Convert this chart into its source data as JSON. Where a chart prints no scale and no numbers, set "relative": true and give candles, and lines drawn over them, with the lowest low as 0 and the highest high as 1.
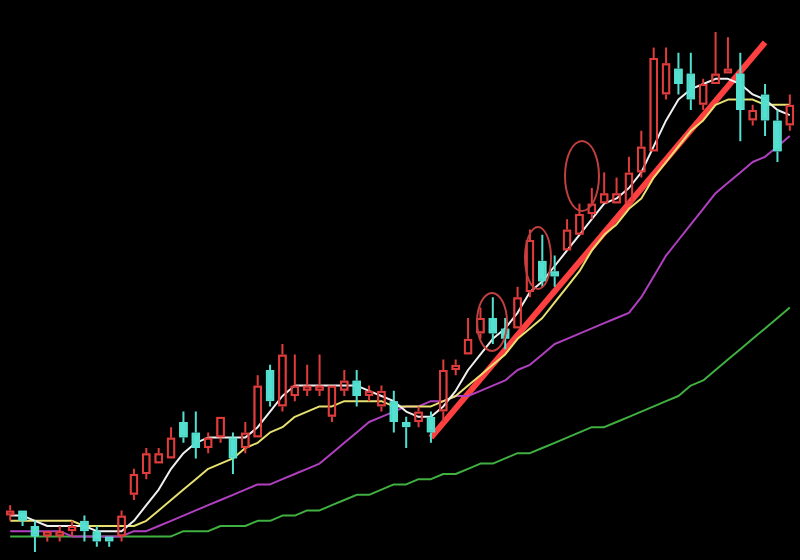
{
  "chart_data": {
    "type": "candlestick",
    "relative": true,
    "categories": [
      null,
      null,
      null,
      null,
      null,
      null,
      null,
      null,
      null,
      null,
      null,
      null,
      null,
      null,
      null,
      null,
      null,
      null,
      null,
      null,
      null,
      null,
      null,
      null,
      null,
      null,
      null,
      null,
      null,
      null,
      null,
      null,
      null,
      null,
      null,
      null,
      null,
      null,
      null,
      null,
      null,
      null,
      null,
      null,
      null,
      null,
      null,
      null,
      null,
      null,
      null,
      null,
      null,
      null,
      null,
      null,
      null,
      null,
      null,
      null,
      null,
      null,
      null,
      null
    ],
    "ohlc": [
      [
        0.07,
        0.09,
        0.06,
        0.08
      ],
      [
        0.08,
        0.08,
        0.05,
        0.06
      ],
      [
        0.05,
        0.06,
        0,
        0.03
      ],
      [
        0.03,
        0.04,
        0.02,
        0.04
      ],
      [
        0.03,
        0.05,
        0.02,
        0.04
      ],
      [
        0.04,
        0.06,
        0.03,
        0.05
      ],
      [
        0.06,
        0.07,
        0.02,
        0.04
      ],
      [
        0.04,
        0.05,
        0.01,
        0.02
      ],
      [
        0.03,
        0.03,
        0.01,
        0.02
      ],
      [
        0.03,
        0.08,
        0.02,
        0.07
      ],
      [
        0.11,
        0.16,
        0.1,
        0.15
      ],
      [
        0.15,
        0.2,
        0.14,
        0.19
      ],
      [
        0.17,
        0.2,
        0.17,
        0.19
      ],
      [
        0.18,
        0.24,
        0.18,
        0.22
      ],
      [
        0.25,
        0.27,
        0.21,
        0.22
      ],
      [
        0.23,
        0.27,
        0.18,
        0.2
      ],
      [
        0.2,
        0.23,
        0.19,
        0.22
      ],
      [
        0.22,
        0.26,
        0.21,
        0.26
      ],
      [
        0.22,
        0.23,
        0.15,
        0.18
      ],
      [
        0.2,
        0.25,
        0.19,
        0.23
      ],
      [
        0.22,
        0.34,
        0.22,
        0.32
      ],
      [
        0.35,
        0.36,
        0.28,
        0.29
      ],
      [
        0.28,
        0.4,
        0.27,
        0.38
      ],
      [
        0.3,
        0.38,
        0.29,
        0.32
      ],
      [
        0.31,
        0.36,
        0.3,
        0.32
      ],
      [
        0.31,
        0.38,
        0.3,
        0.32
      ],
      [
        0.26,
        0.32,
        0.25,
        0.32
      ],
      [
        0.31,
        0.35,
        0.3,
        0.33
      ],
      [
        0.33,
        0.35,
        0.28,
        0.3
      ],
      [
        0.3,
        0.32,
        0.29,
        0.31
      ],
      [
        0.28,
        0.32,
        0.27,
        0.31
      ],
      [
        0.29,
        0.31,
        0.23,
        0.25
      ],
      [
        0.25,
        0.26,
        0.2,
        0.24
      ],
      [
        0.25,
        0.28,
        0.24,
        0.27
      ],
      [
        0.26,
        0.27,
        0.21,
        0.23
      ],
      [
        0.27,
        0.37,
        0.25,
        0.35
      ],
      [
        0.35,
        0.37,
        0.34,
        0.36
      ],
      [
        0.38,
        0.45,
        0.38,
        0.41
      ],
      [
        0.42,
        0.47,
        0.41,
        0.45
      ],
      [
        0.45,
        0.49,
        0.4,
        0.42
      ],
      [
        0.43,
        0.45,
        0.39,
        0.41
      ],
      [
        0.43,
        0.51,
        0.43,
        0.49
      ],
      [
        0.5,
        0.62,
        0.49,
        0.6
      ],
      [
        0.56,
        0.61,
        0.51,
        0.52
      ],
      [
        0.54,
        0.57,
        0.51,
        0.53
      ],
      [
        0.58,
        0.64,
        0.58,
        0.62
      ],
      [
        0.61,
        0.67,
        0.61,
        0.65
      ],
      [
        0.65,
        0.7,
        0.64,
        0.67
      ],
      [
        0.67,
        0.73,
        0.67,
        0.69
      ],
      [
        0.67,
        0.72,
        0.67,
        0.69
      ],
      [
        0.67,
        0.76,
        0.67,
        0.73
      ],
      [
        0.73,
        0.81,
        0.72,
        0.78
      ],
      [
        0.77,
        0.97,
        0.77,
        0.95
      ],
      [
        0.88,
        0.97,
        0.87,
        0.94
      ],
      [
        0.93,
        0.96,
        0.88,
        0.9
      ],
      [
        0.92,
        0.96,
        0.85,
        0.87
      ],
      [
        0.86,
        0.91,
        0.85,
        0.9
      ],
      [
        0.9,
        1,
        0.9,
        0.92
      ],
      [
        0.92,
        0.99,
        0.92,
        0.93
      ],
      [
        0.92,
        0.96,
        0.79,
        0.85
      ],
      [
        0.83,
        0.86,
        0.82,
        0.85
      ],
      [
        0.88,
        0.9,
        0.8,
        0.83
      ],
      [
        0.83,
        0.85,
        0.75,
        0.77
      ],
      [
        0.82,
        0.88,
        0.81,
        0.86
      ]
    ],
    "colors": [
      "#e03c3c",
      "#54e0d0",
      "#54e0d0",
      "#e03c3c",
      "#e03c3c",
      "#e03c3c",
      "#54e0d0",
      "#54e0d0",
      "#54e0d0",
      "#e03c3c",
      "#e03c3c",
      "#e03c3c",
      "#e03c3c",
      "#e03c3c",
      "#54e0d0",
      "#54e0d0",
      "#e03c3c",
      "#e03c3c",
      "#54e0d0",
      "#e03c3c",
      "#e03c3c",
      "#54e0d0",
      "#e03c3c",
      "#e03c3c",
      "#e03c3c",
      "#e03c3c",
      "#e03c3c",
      "#e03c3c",
      "#54e0d0",
      "#e03c3c",
      "#e03c3c",
      "#54e0d0",
      "#54e0d0",
      "#e03c3c",
      "#54e0d0",
      "#e03c3c",
      "#e03c3c",
      "#e03c3c",
      "#e03c3c",
      "#54e0d0",
      "#54e0d0",
      "#e03c3c",
      "#e03c3c",
      "#54e0d0",
      "#54e0d0",
      "#e03c3c",
      "#e03c3c",
      "#e03c3c",
      "#e03c3c",
      "#e03c3c",
      "#e03c3c",
      "#e03c3c",
      "#e03c3c",
      "#e03c3c",
      "#54e0d0",
      "#54e0d0",
      "#e03c3c",
      "#e03c3c",
      "#e03c3c",
      "#54e0d0",
      "#e03c3c",
      "#54e0d0",
      "#54e0d0",
      "#e03c3c"
    ],
    "series": [
      {
        "type": "line",
        "color": "#f0f0f0",
        "values": [
          0.07,
          0.07,
          0.06,
          0.05,
          0.05,
          0.05,
          0.05,
          0.04,
          0.04,
          0.04,
          0.06,
          0.09,
          0.12,
          0.16,
          0.19,
          0.21,
          0.22,
          0.22,
          0.22,
          0.22,
          0.24,
          0.27,
          0.3,
          0.32,
          0.32,
          0.32,
          0.32,
          0.32,
          0.32,
          0.31,
          0.3,
          0.29,
          0.27,
          0.26,
          0.26,
          0.28,
          0.31,
          0.35,
          0.38,
          0.41,
          0.43,
          0.46,
          0.5,
          0.52,
          0.55,
          0.58,
          0.61,
          0.64,
          0.67,
          0.68,
          0.7,
          0.73,
          0.78,
          0.83,
          0.87,
          0.89,
          0.9,
          0.91,
          0.91,
          0.9,
          0.88,
          0.87,
          0.85,
          0.84
        ]
      },
      {
        "type": "line",
        "color": "#e8e070",
        "values": [
          0.06,
          0.06,
          0.06,
          0.06,
          0.06,
          0.06,
          0.05,
          0.05,
          0.05,
          0.05,
          0.05,
          0.06,
          0.08,
          0.1,
          0.12,
          0.14,
          0.16,
          0.17,
          0.18,
          0.2,
          0.21,
          0.23,
          0.24,
          0.26,
          0.27,
          0.28,
          0.28,
          0.29,
          0.29,
          0.29,
          0.29,
          0.28,
          0.28,
          0.28,
          0.28,
          0.29,
          0.3,
          0.32,
          0.34,
          0.36,
          0.38,
          0.41,
          0.43,
          0.45,
          0.48,
          0.51,
          0.54,
          0.58,
          0.61,
          0.63,
          0.66,
          0.68,
          0.72,
          0.75,
          0.78,
          0.81,
          0.83,
          0.86,
          0.87,
          0.87,
          0.87,
          0.86,
          0.86,
          0.86
        ]
      },
      {
        "type": "line",
        "color": "#b040c0",
        "values": [
          0.04,
          0.04,
          0.04,
          0.04,
          0.04,
          0.03,
          0.03,
          0.03,
          0.03,
          0.03,
          0.04,
          0.04,
          0.05,
          0.06,
          0.07,
          0.08,
          0.09,
          0.1,
          0.11,
          0.12,
          0.13,
          0.13,
          0.14,
          0.15,
          0.16,
          0.17,
          0.19,
          0.21,
          0.23,
          0.25,
          0.26,
          0.27,
          0.28,
          0.28,
          0.29,
          0.29,
          0.3,
          0.3,
          0.31,
          0.32,
          0.33,
          0.35,
          0.36,
          0.38,
          0.4,
          0.41,
          0.42,
          0.43,
          0.44,
          0.45,
          0.46,
          0.49,
          0.53,
          0.57,
          0.6,
          0.63,
          0.66,
          0.69,
          0.71,
          0.73,
          0.75,
          0.76,
          0.78,
          0.8
        ]
      },
      {
        "type": "line",
        "color": "#40b040",
        "values": [
          0.03,
          0.03,
          0.03,
          0.03,
          0.03,
          0.03,
          0.03,
          0.03,
          0.03,
          0.03,
          0.03,
          0.03,
          0.03,
          0.03,
          0.04,
          0.04,
          0.04,
          0.05,
          0.05,
          0.05,
          0.06,
          0.06,
          0.07,
          0.07,
          0.08,
          0.08,
          0.09,
          0.1,
          0.11,
          0.11,
          0.12,
          0.13,
          0.13,
          0.14,
          0.14,
          0.15,
          0.15,
          0.16,
          0.17,
          0.17,
          0.18,
          0.19,
          0.19,
          0.2,
          0.21,
          0.22,
          0.23,
          0.24,
          0.24,
          0.25,
          0.26,
          0.27,
          0.28,
          0.29,
          0.3,
          0.32,
          0.33,
          0.35,
          0.37,
          0.39,
          0.41,
          0.43,
          0.45,
          0.47
        ]
      },
      {
        "type": "line",
        "color": "#ff4040",
        "values": [
          null,
          null,
          null,
          null,
          null,
          null,
          null,
          null,
          null,
          null,
          null,
          null,
          null,
          null,
          null,
          null,
          null,
          null,
          null,
          null,
          null,
          null,
          null,
          null,
          null,
          null,
          null,
          null,
          null,
          null,
          null,
          null,
          null,
          null,
          0.22,
          null,
          null,
          null,
          null,
          null,
          null,
          null,
          null,
          null,
          null,
          null,
          null,
          null,
          null,
          null,
          null,
          null,
          null,
          null,
          null,
          null,
          null,
          null,
          null,
          null,
          null,
          0.98,
          null,
          null
        ]
      }
    ]
  }
}
